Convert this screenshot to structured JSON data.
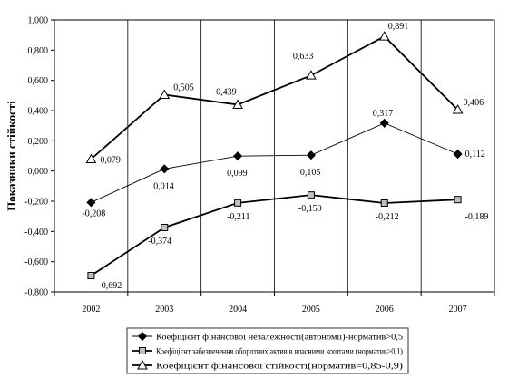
{
  "chart_data": {
    "type": "line",
    "title": "",
    "xlabel": "",
    "ylabel": "Показники стійкості",
    "categories": [
      "2002",
      "2003",
      "2004",
      "2005",
      "2006",
      "2007"
    ],
    "ylim": [
      -0.8,
      1.0
    ],
    "yticks": [
      "1,000",
      "0,800",
      "0,600",
      "0,400",
      "0,200",
      "0,000",
      "-0,200",
      "-0,400",
      "-0,600",
      "-0,800"
    ],
    "ytick_values": [
      1.0,
      0.8,
      0.6,
      0.4,
      0.2,
      0.0,
      -0.2,
      -0.4,
      -0.6,
      -0.8
    ],
    "grid": "vertical",
    "legend_position": "bottom",
    "series": [
      {
        "name": "Коефіцієнт фінансової незалежності(автономії)-норматив>0,5",
        "marker": "diamond",
        "values": [
          -0.208,
          0.014,
          0.099,
          0.105,
          0.317,
          0.112
        ],
        "labels": [
          "-0,208",
          "0,014",
          "0,099",
          "0,105",
          "0,317",
          "0,112"
        ],
        "color": "#000000"
      },
      {
        "name": "Коефіцієнт забезпечення оборотних активів власними коштами (норматив>0,1)",
        "marker": "square",
        "values": [
          -0.692,
          -0.374,
          -0.211,
          -0.159,
          -0.212,
          -0.189
        ],
        "labels": [
          "-0,692",
          "-0,374",
          "-0,211",
          "-0,159",
          "-0,212",
          "-0,189"
        ],
        "color": "#000000"
      },
      {
        "name": "Коефіцієнт фінансової стійкості(норматив=0,85-0,9)",
        "marker": "triangle",
        "values": [
          0.079,
          0.505,
          0.439,
          0.633,
          0.891,
          0.406
        ],
        "labels": [
          "0,079",
          "0,505",
          "0,439",
          "0,633",
          "0,891",
          "0,406"
        ],
        "color": "#000000"
      }
    ]
  }
}
